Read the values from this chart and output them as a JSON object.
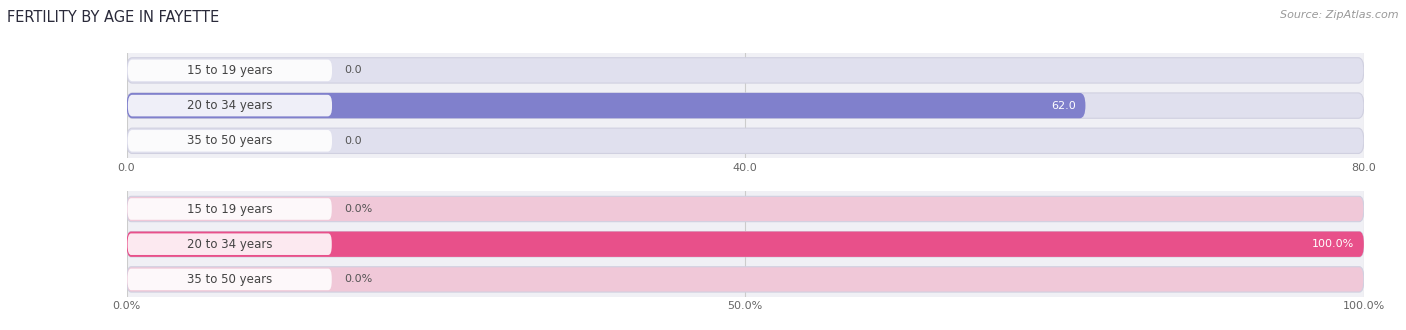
{
  "title": "FERTILITY BY AGE IN FAYETTE",
  "source": "Source: ZipAtlas.com",
  "top_chart": {
    "categories": [
      "15 to 19 years",
      "20 to 34 years",
      "35 to 50 years"
    ],
    "values": [
      0.0,
      62.0,
      0.0
    ],
    "xlim": [
      0,
      80.0
    ],
    "xticks": [
      0.0,
      40.0,
      80.0
    ],
    "xtick_labels": [
      "0.0",
      "40.0",
      "80.0"
    ],
    "bar_color": "#8080cc",
    "bar_bg_color": "#e0e0ee",
    "label_color_on_bar": "#ffffff",
    "label_color_off_bar": "#555555",
    "label_bg_color": "#c8c8e8"
  },
  "bottom_chart": {
    "categories": [
      "15 to 19 years",
      "20 to 34 years",
      "35 to 50 years"
    ],
    "values": [
      0.0,
      100.0,
      0.0
    ],
    "xlim": [
      0,
      100.0
    ],
    "xticks": [
      0.0,
      50.0,
      100.0
    ],
    "xtick_labels": [
      "0.0%",
      "50.0%",
      "100.0%"
    ],
    "bar_color": "#e8508a",
    "bar_bg_color": "#f0c8d8",
    "label_color_on_bar": "#ffffff",
    "label_color_off_bar": "#555555",
    "label_bg_color": "#f0a0c0"
  },
  "fig_bg": "#ffffff",
  "chart_bg": "#f0f0f5",
  "bar_height": 0.72,
  "label_fontsize": 8.0,
  "tick_fontsize": 8.0,
  "title_fontsize": 10.5,
  "source_fontsize": 8.0,
  "category_fontsize": 8.5,
  "cat_label_color": "#444444",
  "grid_color": "#cccccc",
  "grid_lw": 0.8
}
